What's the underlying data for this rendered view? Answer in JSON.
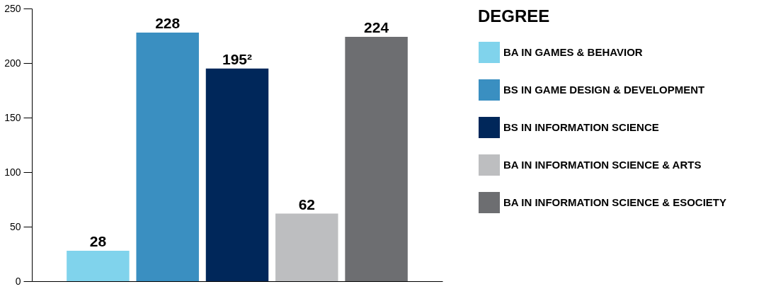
{
  "chart_data": {
    "type": "bar",
    "categories": [
      null,
      null,
      null,
      null,
      null
    ],
    "legend_title": "DEGREE",
    "legend": "right",
    "data_labels": true,
    "ylim": [
      0,
      250
    ],
    "yticks": [
      0,
      50,
      100,
      150,
      200,
      250
    ],
    "grid": false,
    "series": [
      {
        "name": "BA IN GAMES & BEHAVIOR",
        "color": "#80d3ec",
        "values": [
          28,
          null,
          null,
          null,
          null
        ]
      },
      {
        "name": "BS IN GAME DESIGN & DEVELOPMENT",
        "color": "#3a8fc1",
        "values": [
          null,
          228,
          null,
          null,
          null
        ]
      },
      {
        "name": "BS IN INFORMATION SCIENCE",
        "color": "#00275a",
        "values": [
          null,
          null,
          195,
          null,
          null
        ],
        "value_labels": [
          null,
          null,
          "195²",
          null,
          null
        ]
      },
      {
        "name": "BA IN INFORMATION SCIENCE & ARTS",
        "color": "#bdbec0",
        "values": [
          null,
          null,
          null,
          62,
          null
        ]
      },
      {
        "name": "BA IN INFORMATION SCIENCE & ESOCIETY",
        "color": "#6d6e71",
        "values": [
          null,
          null,
          null,
          null,
          224
        ]
      }
    ]
  }
}
